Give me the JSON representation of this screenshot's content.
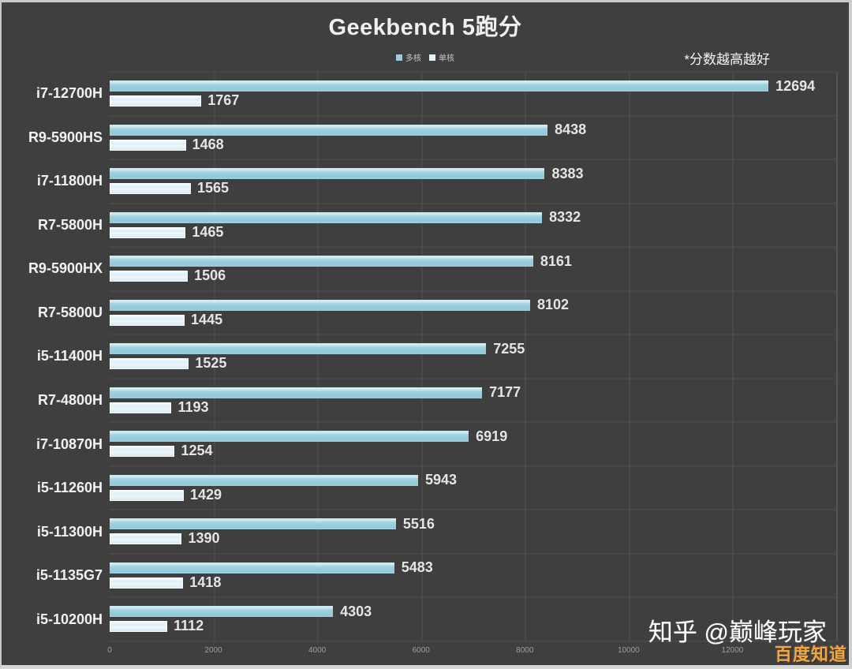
{
  "chart_data": {
    "type": "bar",
    "orientation": "horizontal",
    "title": "Geekbench 5跑分",
    "note": "*分数越高越好",
    "legend_position": "top-center",
    "grid": true,
    "legend": [
      {
        "name": "多核",
        "color": "#9ACDDC"
      },
      {
        "name": "单核",
        "color": "#E6F2F7"
      }
    ],
    "categories": [
      "i7-12700H",
      "R9-5900HS",
      "i7-11800H",
      "R7-5800H",
      "R9-5900HX",
      "R7-5800U",
      "i5-11400H",
      "R7-4800H",
      "i7-10870H",
      "i5-11260H",
      "i5-11300H",
      "i5-1135G7",
      "i5-10200H"
    ],
    "series": [
      {
        "name": "多核",
        "color": "#9ACDDC",
        "values": [
          12694,
          8438,
          8383,
          8332,
          8161,
          8102,
          7255,
          7177,
          6919,
          5943,
          5516,
          5483,
          4303
        ]
      },
      {
        "name": "单核",
        "color": "#E6F2F7",
        "values": [
          1767,
          1468,
          1565,
          1465,
          1506,
          1445,
          1525,
          1193,
          1254,
          1429,
          1390,
          1418,
          1112
        ]
      }
    ],
    "xlabel": "",
    "ylabel": "",
    "xlim": [
      0,
      14000
    ],
    "xticks": [
      0,
      2000,
      4000,
      6000,
      8000,
      10000,
      12000
    ],
    "colors": {
      "background": "#3F3F3F",
      "category_label": "#F2F2F2",
      "value_label": "#E5E5E5",
      "tick_label": "#9E9E9E",
      "gridline": "#4B4B4B"
    }
  },
  "watermarks": {
    "zhihu": "知乎 @巅峰玩家",
    "baidu": "百度知道"
  }
}
